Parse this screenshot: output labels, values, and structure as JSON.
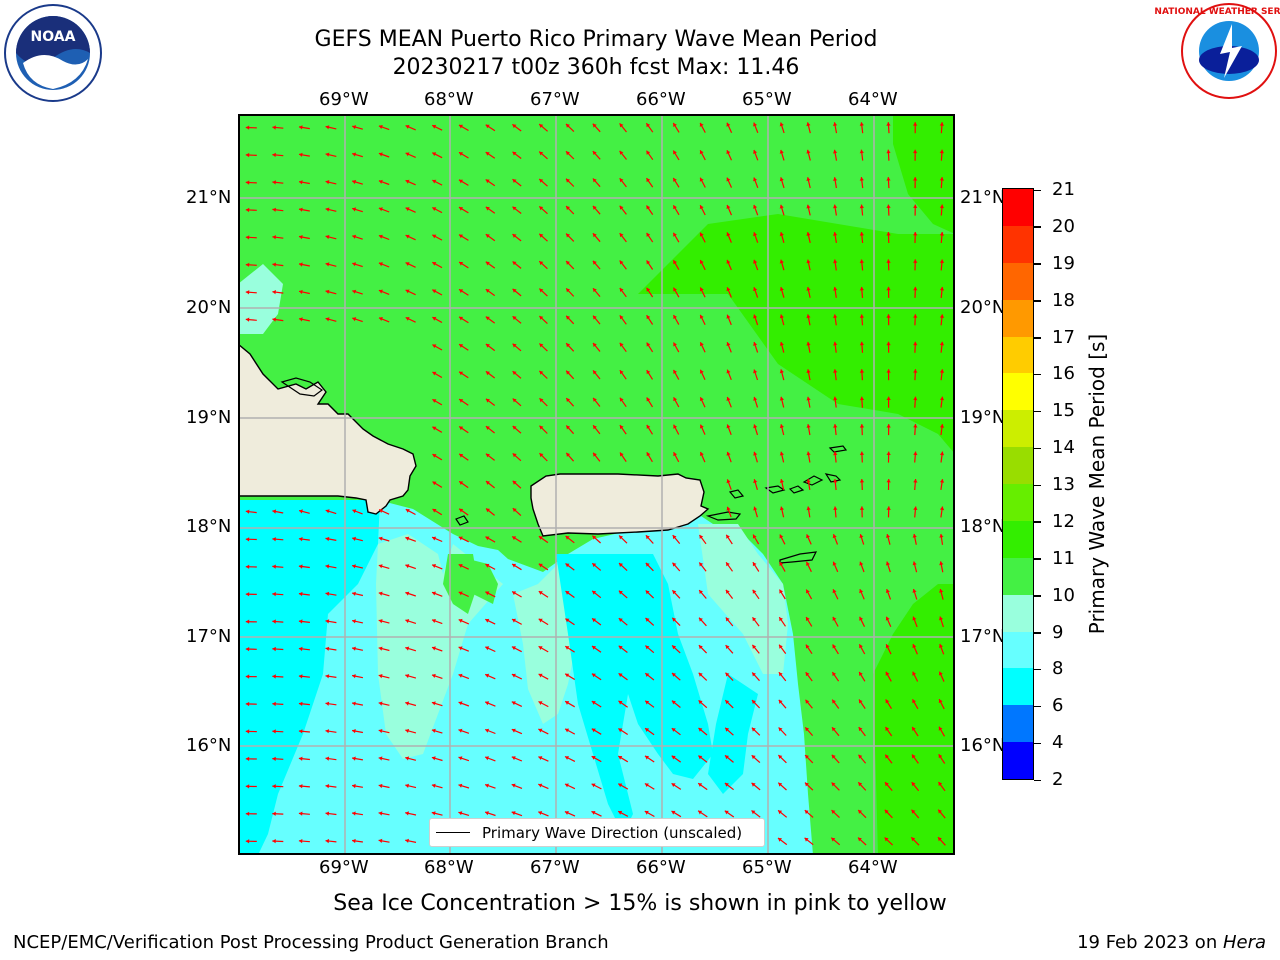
{
  "header": {
    "title_line1": "GEFS MEAN Puerto Rico Primary Wave Mean Period",
    "title_line2": "20230217 t00z 360h fcst   Max: 11.46"
  },
  "map": {
    "lon_ticks": [
      "69°W",
      "68°W",
      "67°W",
      "66°W",
      "65°W",
      "64°W"
    ],
    "lat_ticks": [
      "21°N",
      "20°N",
      "19°N",
      "18°N",
      "17°N",
      "16°N"
    ],
    "legend_label": "Primary Wave Direction (unscaled)",
    "arrow_color": "#ff0000",
    "land_color": "#efecdc"
  },
  "colorbar": {
    "label": "Primary Wave Mean Period [s]",
    "ticks": [
      "21",
      "20",
      "19",
      "18",
      "17",
      "16",
      "15",
      "14",
      "13",
      "12",
      "11",
      "10",
      "9",
      "8",
      "6",
      "4",
      "2"
    ],
    "colors": [
      "#ff0000",
      "#ff3300",
      "#ff6600",
      "#ff9900",
      "#ffcc00",
      "#ffff00",
      "#ccee00",
      "#99dd00",
      "#66ee00",
      "#33ee00",
      "#44f044",
      "#99ffdd",
      "#66ffff",
      "#00ffff",
      "#0077ff",
      "#0000ff"
    ]
  },
  "caption": "Sea Ice Concentration > 15% is shown in pink to yellow",
  "footer": {
    "left": "NCEP/EMC/Verification Post Processing Product Generation Branch",
    "right_prefix": "19 Feb 2023 on ",
    "right_host": "Hera"
  },
  "logos": {
    "noaa": "NOAA",
    "nws": "NATIONAL WEATHER SERVICE"
  }
}
